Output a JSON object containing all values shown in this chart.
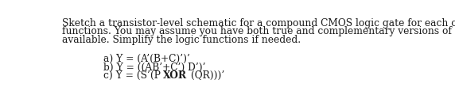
{
  "background_color": "#ffffff",
  "para_line1": "Sketch a transistor-level schematic for a compound CMOS logic gate for each of the following",
  "para_line2": "functions. You may assume you have both true and complementary versions of the inputs",
  "para_line3": "available. Simplify the logic functions if needed.",
  "item_a": "a) Y = (A’(B+C)’)’",
  "item_b": "b) Y = ((AB’+C’) D’)’",
  "item_c_pre": "c) Y = (S’(P ",
  "item_c_bold": "XOR",
  "item_c_post": " (QR)))’",
  "text_color": "#1c1c1c",
  "font_size": 8.8,
  "fig_width": 5.72,
  "fig_height": 1.39,
  "dpi": 100
}
